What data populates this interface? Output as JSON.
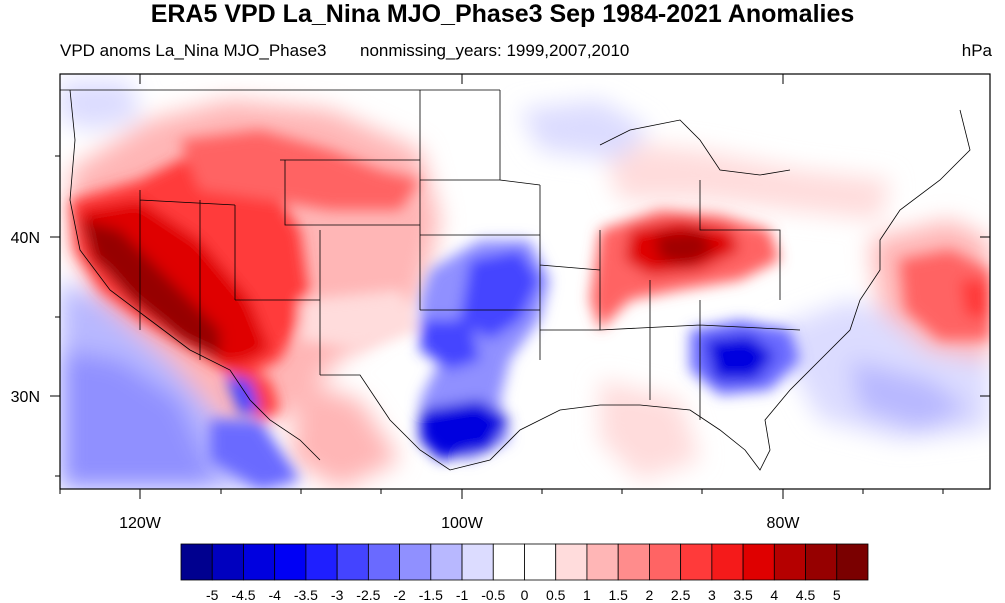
{
  "title": "ERA5 VPD La_Nina MJO_Phase3 Sep 1984-2021 Anomalies",
  "subtitle_left": "VPD anoms La_Nina MJO_Phase3",
  "subtitle_center": "nonmissing_years: 1999,2007,2010",
  "subtitle_right": "hPa",
  "map": {
    "projection": "cylindrical-equidistant",
    "lon_range": [
      -125,
      -68
    ],
    "lat_range": [
      24,
      50
    ],
    "x_ticks": [
      "120W",
      "100W",
      "80W"
    ],
    "y_ticks": [
      "40N",
      "30N"
    ]
  },
  "colorbar": {
    "labels": [
      "-5",
      "-4.5",
      "-4",
      "-3.5",
      "-3",
      "-2.5",
      "-2",
      "-1.5",
      "-1",
      "-0.5",
      "0",
      "0.5",
      "1",
      "1.5",
      "2",
      "2.5",
      "3",
      "3.5",
      "4",
      "4.5",
      "5"
    ],
    "colors": [
      "#00008f",
      "#0000bf",
      "#0000df",
      "#0000f5",
      "#1f1fff",
      "#4444ff",
      "#6a6aff",
      "#9090ff",
      "#b8b8ff",
      "#dcdcff",
      "#ffffff",
      "#ffffff",
      "#ffdcdc",
      "#ffb6b6",
      "#ff8c8c",
      "#ff6464",
      "#ff3a3a",
      "#f51a1a",
      "#df0000",
      "#b50000",
      "#960000",
      "#7a0000"
    ]
  }
}
